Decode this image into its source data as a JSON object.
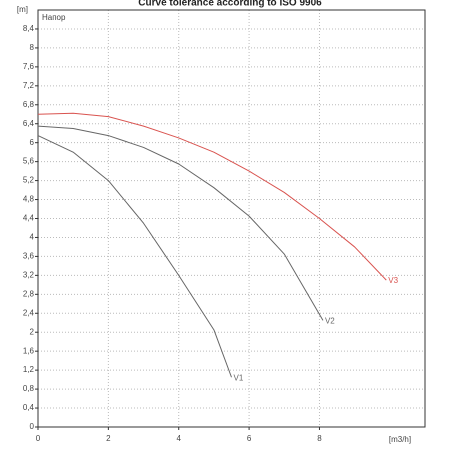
{
  "chart_data": {
    "type": "line",
    "title": "Curve tolerance according to ISO 9906",
    "legend_title": "Напор",
    "y_label": "[m]",
    "x_label": "[m3/h]",
    "xlim": [
      0,
      11
    ],
    "ylim": [
      0,
      8.8
    ],
    "xticks": [
      0,
      2,
      4,
      6,
      8
    ],
    "yticks": [
      0,
      {
        "value": 0.4,
        "label": "0,4"
      },
      {
        "value": 0.8,
        "label": "0,8"
      },
      {
        "value": 1.2,
        "label": "1,2"
      },
      {
        "value": 1.6,
        "label": "1,6"
      },
      2,
      {
        "value": 2.4,
        "label": "2,4"
      },
      {
        "value": 2.8,
        "label": "2,8"
      },
      {
        "value": 3.2,
        "label": "3,2"
      },
      {
        "value": 3.6,
        "label": "3,6"
      },
      4,
      {
        "value": 4.4,
        "label": "4,4"
      },
      {
        "value": 4.8,
        "label": "4,8"
      },
      {
        "value": 5.2,
        "label": "5,2"
      },
      {
        "value": 5.6,
        "label": "5,6"
      },
      6,
      {
        "value": 6.4,
        "label": "6,4"
      },
      {
        "value": 6.8,
        "label": "6,8"
      },
      {
        "value": 7.2,
        "label": "7,2"
      },
      {
        "value": 7.6,
        "label": "7,6"
      },
      8,
      {
        "value": 8.4,
        "label": "8,4"
      }
    ],
    "grid": true,
    "series": [
      {
        "name": "V1",
        "color": "#666666",
        "x": [
          0,
          1,
          2,
          3,
          4,
          5,
          5.5
        ],
        "values": [
          6.15,
          5.8,
          5.2,
          4.3,
          3.2,
          2.05,
          1.05
        ]
      },
      {
        "name": "V2",
        "color": "#666666",
        "x": [
          0,
          1,
          2,
          3,
          4,
          5,
          6,
          7,
          8.1
        ],
        "values": [
          6.35,
          6.3,
          6.15,
          5.9,
          5.55,
          5.05,
          4.45,
          3.65,
          2.25
        ]
      },
      {
        "name": "V3",
        "color": "#d9534f",
        "x": [
          0,
          1,
          2,
          3,
          4,
          5,
          6,
          7,
          8,
          9,
          9.9
        ],
        "values": [
          6.6,
          6.62,
          6.55,
          6.35,
          6.1,
          5.8,
          5.4,
          4.95,
          4.4,
          3.8,
          3.1
        ]
      }
    ]
  }
}
